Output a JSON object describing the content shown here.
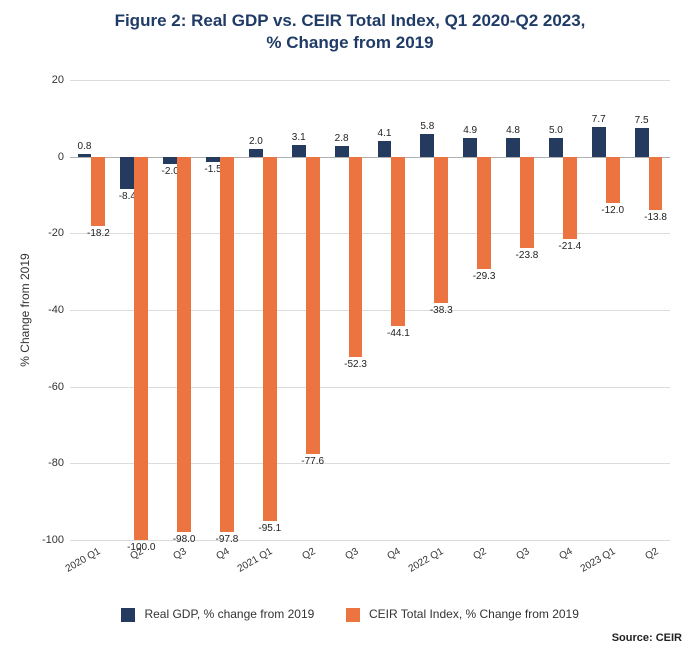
{
  "chart": {
    "type": "bar",
    "title_line1": "Figure 2: Real GDP vs. CEIR Total Index, Q1 2020-Q2 2023,",
    "title_line2": "% Change from 2019",
    "title_color": "#1f3b66",
    "title_fontsize": 17,
    "y_axis_title": "% Change from 2019",
    "ylim_min": -100,
    "ylim_max": 20,
    "ytick_step": 20,
    "yticks": [
      20,
      0,
      -20,
      -40,
      -60,
      -80,
      -100
    ],
    "grid_color": "#dcdcdc",
    "background_color": "#ffffff",
    "categories": [
      "2020 Q1",
      "Q2",
      "Q3",
      "Q4",
      "2021 Q1",
      "Q2",
      "Q3",
      "Q4",
      "2022 Q1",
      "Q2",
      "Q3",
      "Q4",
      "2023 Q1",
      "Q2"
    ],
    "series": [
      {
        "name": "Real GDP, % change from 2019",
        "color": "#243a5e",
        "values": [
          0.8,
          -8.4,
          -2.0,
          -1.5,
          2.0,
          3.1,
          2.8,
          4.1,
          5.8,
          4.9,
          4.8,
          5.0,
          7.7,
          7.5
        ]
      },
      {
        "name": "CEIR Total Index, % Change from 2019",
        "color": "#ec7440",
        "values": [
          -18.2,
          -100.0,
          -98.0,
          -97.8,
          -95.1,
          -77.6,
          -52.3,
          -44.1,
          -38.3,
          -29.3,
          -23.8,
          -21.4,
          -12.0,
          -13.8
        ]
      }
    ],
    "bar_group_gap_ratio": 0.35,
    "label_fontsize": 10,
    "source": "Source: CEIR"
  }
}
